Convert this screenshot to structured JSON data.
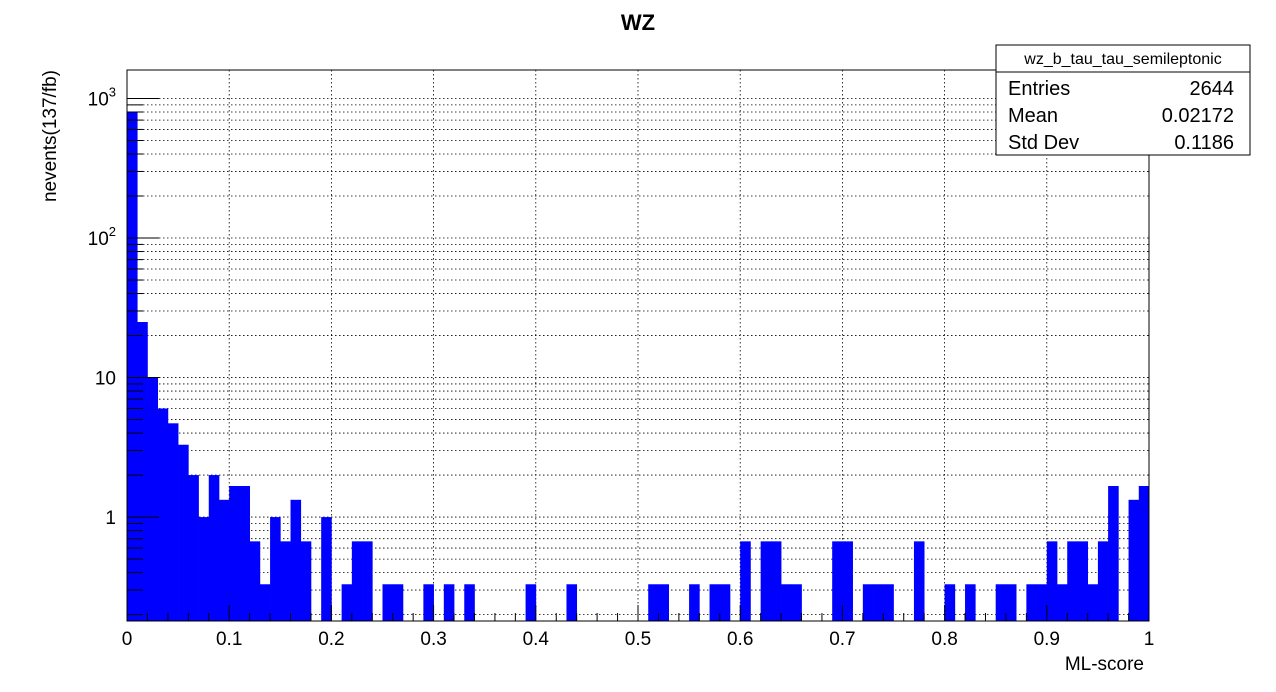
{
  "chart_data": {
    "type": "bar",
    "title": "WZ",
    "xlabel": "ML-score",
    "ylabel": "nevents(137/fb)",
    "xlim": [
      0,
      1
    ],
    "ylim": [
      0.18,
      1600
    ],
    "yscale": "log",
    "grid": true,
    "bar_color": "#0000ff",
    "bins": 100,
    "values": [
      800,
      25,
      10,
      6,
      4.7,
      3.3,
      2,
      1.0,
      2,
      1.33,
      1.67,
      1.67,
      0.67,
      0.33,
      1.0,
      0.67,
      1.33,
      0.67,
      0,
      1.0,
      0,
      0.33,
      0.67,
      0.67,
      0,
      0.33,
      0.33,
      0,
      0,
      0.33,
      0,
      0.33,
      0,
      0.33,
      0,
      0,
      0,
      0,
      0,
      0.33,
      0,
      0,
      0,
      0.33,
      0,
      0,
      0,
      0,
      0,
      0,
      0,
      0.33,
      0.33,
      0,
      0,
      0.33,
      0,
      0.33,
      0.33,
      0,
      0.67,
      0,
      0.67,
      0.67,
      0.33,
      0.33,
      0,
      0,
      0,
      0.67,
      0.67,
      0,
      0.33,
      0.33,
      0.33,
      0,
      0,
      0.67,
      0,
      0,
      0.33,
      0,
      0.33,
      0,
      0,
      0.33,
      0.33,
      0,
      0.33,
      0.33,
      0.67,
      0.33,
      0.67,
      0.67,
      0.33,
      0.67,
      1.67,
      0,
      1.33,
      1.67
    ],
    "x_ticks": [
      "0",
      "0.1",
      "0.2",
      "0.3",
      "0.4",
      "0.5",
      "0.6",
      "0.7",
      "0.8",
      "0.9",
      "1"
    ],
    "y_ticks": [
      {
        "value": 1,
        "base": "1",
        "exp": ""
      },
      {
        "value": 10,
        "base": "10",
        "exp": ""
      },
      {
        "value": 100,
        "base": "10",
        "exp": "2"
      },
      {
        "value": 1000,
        "base": "10",
        "exp": "3"
      }
    ],
    "stats": {
      "name": "wz_b_tau_tau_semileptonic",
      "rows": [
        {
          "label": "Entries",
          "value": "2644"
        },
        {
          "label": "Mean",
          "value": "0.02172"
        },
        {
          "label": "Std Dev",
          "value": "0.1186"
        }
      ]
    }
  }
}
